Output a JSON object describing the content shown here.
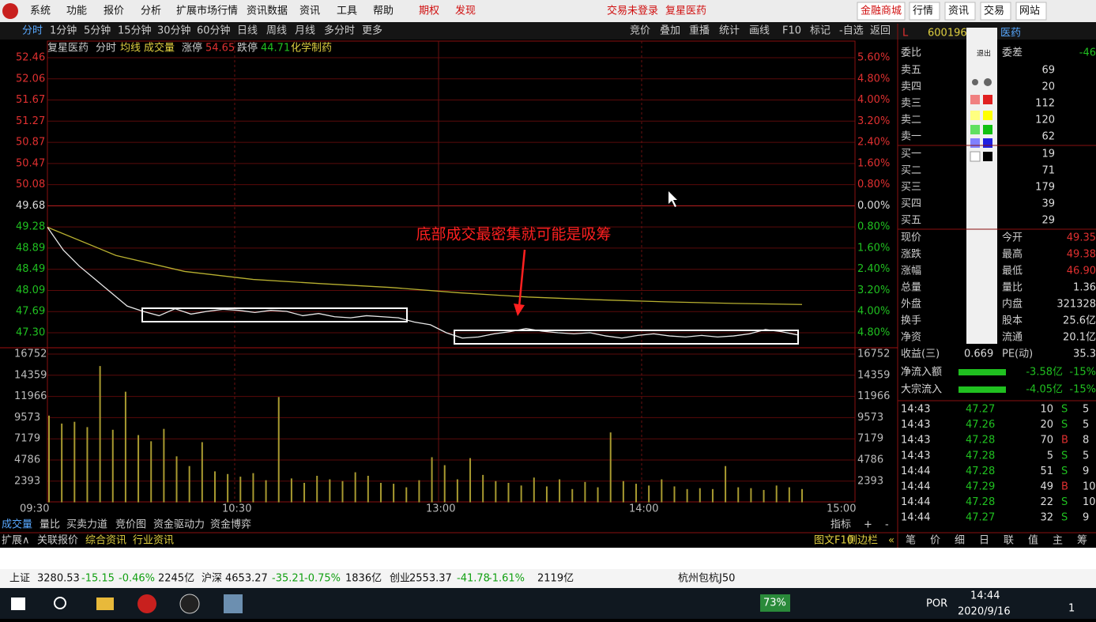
{
  "menu": {
    "items": [
      "系统",
      "功能",
      "报价",
      "分析",
      "扩展市场行情",
      "资讯数据",
      "资讯",
      "工具",
      "帮助"
    ],
    "special": [
      "期权",
      "发现"
    ],
    "status": "交易未登录",
    "stock": "复星医药",
    "right": [
      "金融商城",
      "行情",
      "资讯",
      "交易",
      "网站"
    ]
  },
  "toolbar": {
    "periods": [
      "分时",
      "1分钟",
      "5分钟",
      "15分钟",
      "30分钟",
      "60分钟",
      "日线",
      "周线",
      "月线",
      "多分时",
      "更多"
    ],
    "tools": [
      "竞价",
      "叠加",
      "重播",
      "统计",
      "画线",
      "F10",
      "标记",
      "-自选",
      "返回"
    ]
  },
  "chart": {
    "name": "复星医药",
    "mode": "分时",
    "avg_label": "均线",
    "vol_label": "成交量",
    "up_label": "涨停",
    "up": "54.65",
    "down_label": "跌停",
    "down": "44.71",
    "sector": "化学制药",
    "price_ticks": [
      "52.46",
      "52.06",
      "51.67",
      "51.27",
      "50.87",
      "50.47",
      "50.08",
      "49.68",
      "49.28",
      "48.89",
      "48.49",
      "48.09",
      "47.69",
      "47.30"
    ],
    "pct_ticks": [
      "5.60%",
      "4.80%",
      "4.00%",
      "3.20%",
      "2.40%",
      "1.60%",
      "0.80%",
      "0.00%",
      "0.80%",
      "1.60%",
      "2.40%",
      "3.20%",
      "4.00%",
      "4.80%"
    ],
    "vol_ticks": [
      "16752",
      "14359",
      "11966",
      "9573",
      "7179",
      "4786",
      "2393"
    ],
    "times": [
      "09:30",
      "10:30",
      "13:00",
      "14:00",
      "15:00"
    ],
    "annotation": "底部成交最密集就可能是吸筹",
    "price_range": [
      47.3,
      52.46
    ],
    "volume_range": [
      0,
      16752
    ],
    "price": [
      49.28,
      48.85,
      48.55,
      48.3,
      48.05,
      47.8,
      47.7,
      47.62,
      47.75,
      47.65,
      47.7,
      47.74,
      47.72,
      47.68,
      47.72,
      47.7,
      47.62,
      47.66,
      47.6,
      47.58,
      47.62,
      47.6,
      47.58,
      47.5,
      47.45,
      47.3,
      47.2,
      47.22,
      47.28,
      47.32,
      47.38,
      47.33,
      47.3,
      47.28,
      47.3,
      47.24,
      47.2,
      47.25,
      47.28,
      47.24,
      47.22,
      47.25,
      47.22,
      47.24,
      47.28,
      47.36,
      47.32,
      47.26
    ],
    "avg": [
      49.28,
      48.75,
      48.45,
      48.3,
      48.22,
      48.15,
      48.05,
      47.97,
      47.92,
      47.88,
      47.85,
      47.83
    ],
    "volume": [
      9800,
      8900,
      9100,
      8500,
      15400,
      8200,
      12500,
      7600,
      6900,
      8300,
      5200,
      4100,
      6800,
      3500,
      3200,
      2900,
      3300,
      2500,
      11900,
      2700,
      2200,
      3000,
      2600,
      2400,
      3400,
      3000,
      2200,
      2100,
      1700,
      2500,
      5100,
      4200,
      2600,
      5000,
      3100,
      2400,
      2200,
      1900,
      2800,
      1800,
      2600,
      1500,
      2300,
      1700,
      7900,
      2400,
      2100,
      1900,
      2600,
      1800,
      1500,
      1600,
      1500,
      4100,
      1700,
      1600,
      1400,
      1900,
      1700,
      1500
    ]
  },
  "bottom_tabs": {
    "left": [
      "成交量",
      "量比",
      "买卖力道",
      "竞价图",
      "资金驱动力",
      "资金博弈"
    ],
    "right": [
      "指标",
      "+",
      "-"
    ],
    "row2": [
      "扩展∧",
      "关联报价",
      "综合资讯",
      "行业资讯"
    ],
    "row2_right": [
      "图文F10",
      "侧边栏",
      "«"
    ]
  },
  "panel": {
    "flag": "L",
    "code": "600196",
    "suffix": "医药",
    "weibi": "委比",
    "weicha": "委差",
    "weicha_value": "-46",
    "book": [
      [
        "卖五",
        "69"
      ],
      [
        "卖四",
        "20"
      ],
      [
        "卖三",
        "112"
      ],
      [
        "卖二",
        "120"
      ],
      [
        "卖一",
        "62"
      ],
      [
        "买一",
        "19"
      ],
      [
        "买二",
        "71"
      ],
      [
        "买三",
        "179"
      ],
      [
        "买四",
        "39"
      ],
      [
        "买五",
        "29"
      ]
    ],
    "stats": [
      [
        "现价",
        "今开",
        "49.35"
      ],
      [
        "涨跌",
        "最高",
        "49.38"
      ],
      [
        "涨幅",
        "最低",
        "46.90"
      ],
      [
        "总量",
        "量比",
        "1.36"
      ],
      [
        "外盘",
        "内盘",
        "321328"
      ],
      [
        "换手",
        "股本",
        "25.6亿"
      ],
      [
        "净资",
        "流通",
        "20.1亿"
      ]
    ],
    "eps_label": "收益(三)",
    "eps": "0.669",
    "pe_label": "PE(动)",
    "pe": "35.3",
    "flows": [
      [
        "净流入额",
        "-3.58亿",
        "-15%"
      ],
      [
        "大宗流入",
        "-4.05亿",
        "-15%"
      ]
    ],
    "ticks": [
      [
        "14:43",
        "47.27",
        "10",
        "S",
        "5"
      ],
      [
        "14:43",
        "47.26",
        "20",
        "S",
        "5"
      ],
      [
        "14:43",
        "47.28",
        "70",
        "B",
        "8"
      ],
      [
        "14:43",
        "47.28",
        "5",
        "S",
        "5"
      ],
      [
        "14:44",
        "47.28",
        "51",
        "S",
        "9"
      ],
      [
        "14:44",
        "47.29",
        "49",
        "B",
        "10"
      ],
      [
        "14:44",
        "47.28",
        "22",
        "S",
        "10"
      ],
      [
        "14:44",
        "47.27",
        "32",
        "S",
        "9"
      ]
    ],
    "tabs": [
      "笔",
      "价",
      "细",
      "日",
      "联",
      "值",
      "主",
      "筹"
    ],
    "draw_exit": "退出"
  },
  "status": {
    "indexes": [
      [
        "上证",
        "3280.53",
        "-15.15",
        "-0.46%",
        "2245亿"
      ],
      [
        "沪深",
        "4653.27",
        "-35.21",
        "-0.75%",
        "1836亿"
      ],
      [
        "创业",
        "2553.37",
        "-41.78",
        "-1.61%",
        "2119亿"
      ]
    ],
    "extra": "杭州包杭J50"
  },
  "taskbar": {
    "battery": "73%",
    "lang": "POR",
    "time": "14:44",
    "date": "2020/9/16",
    "badge": "1"
  }
}
